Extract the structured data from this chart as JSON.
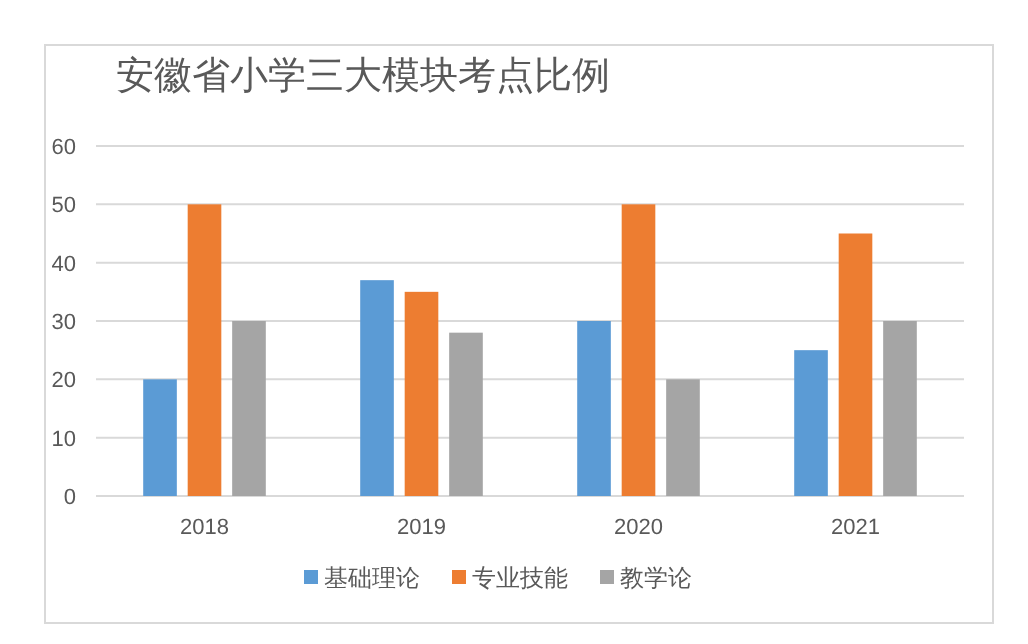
{
  "chart_data": {
    "type": "bar",
    "title": "安徽省小学三大模块考点比例",
    "categories": [
      "2018",
      "2019",
      "2020",
      "2021"
    ],
    "series": [
      {
        "name": "基础理论",
        "color": "#5b9bd5",
        "values": [
          20,
          37,
          30,
          25
        ]
      },
      {
        "name": "专业技能",
        "color": "#ed7d31",
        "values": [
          50,
          35,
          50,
          45
        ]
      },
      {
        "name": "教学论",
        "color": "#a5a5a5",
        "values": [
          30,
          28,
          20,
          30
        ]
      }
    ],
    "ylim": [
      0,
      60
    ],
    "yticks": [
      0,
      10,
      20,
      30,
      40,
      50,
      60
    ],
    "grid": "y",
    "legend": "bottom"
  }
}
